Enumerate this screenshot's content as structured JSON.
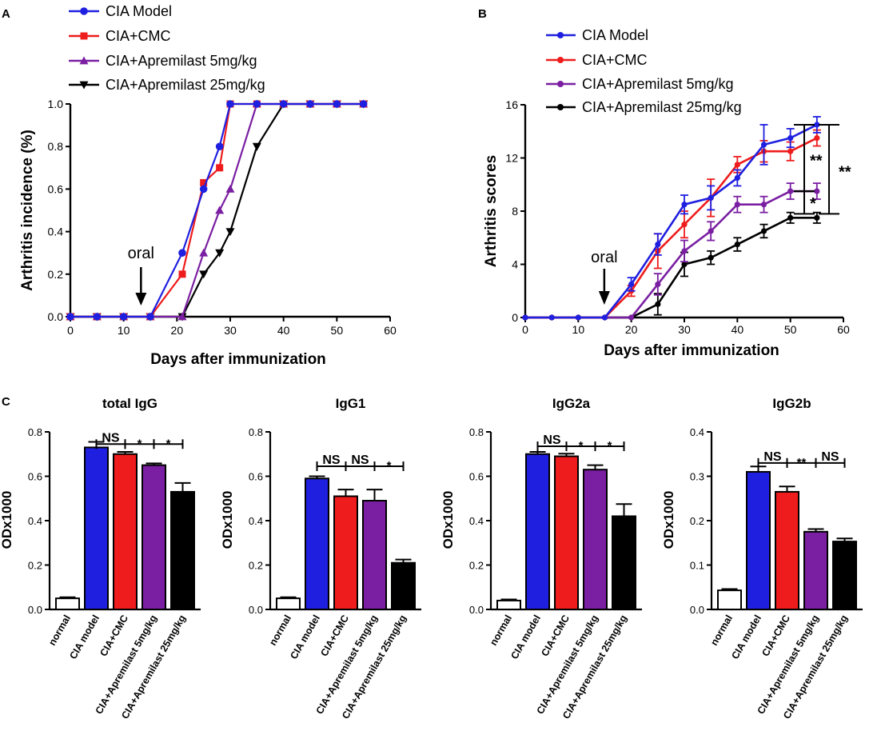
{
  "panel_letters": {
    "a": "A",
    "b": "B",
    "c": "C"
  },
  "chart_data": [
    {
      "id": "A",
      "type": "line",
      "title": "",
      "xlabel": "Days after immunization",
      "ylabel": "Arthritis incidence (%)",
      "xlim": [
        0,
        60
      ],
      "ylim": [
        0,
        1.0
      ],
      "xticks": [
        0,
        10,
        20,
        30,
        40,
        50,
        60
      ],
      "yticks": [
        0.0,
        0.2,
        0.4,
        0.6,
        0.8,
        1.0
      ],
      "xtick_labels": [
        "0",
        "10",
        "20",
        "30",
        "40",
        "50",
        "60"
      ],
      "ytick_labels": [
        "0.0",
        "0.2",
        "0.4",
        "0.6",
        "0.8",
        "1.0"
      ],
      "annotation": {
        "text": "oral",
        "x": 14
      },
      "legend": "top-left",
      "series": [
        {
          "name": "CIA Model",
          "color": "#1f1fe0",
          "marker": "circle",
          "x": [
            0,
            5,
            10,
            15,
            21,
            25,
            28,
            30,
            35,
            40,
            45,
            50,
            55
          ],
          "y": [
            0,
            0,
            0,
            0,
            0.3,
            0.6,
            0.8,
            1.0,
            1.0,
            1.0,
            1.0,
            1.0,
            1.0
          ]
        },
        {
          "name": "CIA+CMC",
          "color": "#ee1c1c",
          "marker": "square",
          "x": [
            0,
            5,
            10,
            15,
            21,
            25,
            28,
            30,
            35,
            40,
            45,
            50,
            55
          ],
          "y": [
            0,
            0,
            0,
            0,
            0.2,
            0.63,
            0.7,
            1.0,
            1.0,
            1.0,
            1.0,
            1.0,
            1.0
          ]
        },
        {
          "name": "CIA+Apremilast 5mg/kg",
          "color": "#7a1fa2",
          "marker": "triangle",
          "x": [
            0,
            5,
            10,
            15,
            21,
            25,
            28,
            30,
            35,
            40,
            45,
            50,
            55
          ],
          "y": [
            0,
            0,
            0,
            0,
            0,
            0.3,
            0.5,
            0.6,
            1.0,
            1.0,
            1.0,
            1.0,
            1.0
          ]
        },
        {
          "name": "CIA+Apremilast 25mg/kg",
          "color": "#000000",
          "marker": "triangle-down",
          "x": [
            0,
            5,
            10,
            15,
            21,
            25,
            28,
            30,
            35,
            40,
            45,
            50,
            55
          ],
          "y": [
            0,
            0,
            0,
            0,
            0,
            0.2,
            0.3,
            0.4,
            0.8,
            1.0,
            1.0,
            1.0,
            1.0
          ]
        }
      ]
    },
    {
      "id": "B",
      "type": "line",
      "title": "",
      "xlabel": "Days after immunization",
      "ylabel": "Arthritis scores",
      "xlim": [
        0,
        60
      ],
      "ylim": [
        0,
        16
      ],
      "xticks": [
        0,
        10,
        20,
        30,
        40,
        50,
        60
      ],
      "yticks": [
        0,
        4,
        8,
        12,
        16
      ],
      "xtick_labels": [
        "0",
        "10",
        "20",
        "30",
        "40",
        "50",
        "60"
      ],
      "ytick_labels": [
        "0",
        "4",
        "8",
        "12",
        "16"
      ],
      "annotation": {
        "text": "oral",
        "x": 14
      },
      "legend": "top-left",
      "significance": [
        {
          "label": "**",
          "y1": 14.5,
          "y2": 9.5
        },
        {
          "label": "*",
          "y1": 9.5,
          "y2": 7.8
        },
        {
          "label": "**",
          "y1": 14.5,
          "y2": 7.8
        }
      ],
      "series": [
        {
          "name": "CIA Model",
          "color": "#1f1fe0",
          "x": [
            0,
            5,
            10,
            15,
            20,
            25,
            30,
            35,
            40,
            45,
            50,
            55
          ],
          "y": [
            0,
            0,
            0,
            0,
            2.5,
            5.5,
            8.5,
            9.0,
            10.5,
            13.0,
            13.5,
            14.5
          ],
          "err": [
            0,
            0,
            0,
            0,
            0.5,
            0.8,
            0.7,
            0.9,
            0.6,
            1.5,
            0.7,
            0.6
          ]
        },
        {
          "name": "CIA+CMC",
          "color": "#ee1c1c",
          "x": [
            0,
            5,
            10,
            15,
            20,
            25,
            30,
            35,
            40,
            45,
            50,
            55
          ],
          "y": [
            0,
            0,
            0,
            0,
            2.0,
            5.0,
            7.0,
            9.0,
            11.5,
            12.5,
            12.5,
            13.5
          ],
          "err": [
            0,
            0,
            0,
            0,
            0.4,
            1.3,
            1.0,
            1.4,
            0.6,
            0.8,
            0.7,
            0.6
          ]
        },
        {
          "name": "CIA+Apremilast 5mg/kg",
          "color": "#7a1fa2",
          "x": [
            0,
            5,
            10,
            15,
            20,
            25,
            30,
            35,
            40,
            45,
            50,
            55
          ],
          "y": [
            0,
            0,
            0,
            0,
            0,
            2.5,
            5.0,
            6.5,
            8.5,
            8.5,
            9.5,
            9.5
          ],
          "err": [
            0,
            0,
            0,
            0,
            0,
            0.8,
            0.8,
            0.7,
            0.6,
            0.6,
            0.6,
            0.6
          ]
        },
        {
          "name": "CIA+Apremilast 25mg/kg",
          "color": "#000000",
          "x": [
            0,
            5,
            10,
            15,
            20,
            25,
            30,
            35,
            40,
            45,
            50,
            55
          ],
          "y": [
            0,
            0,
            0,
            0,
            0,
            1.0,
            4.0,
            4.5,
            5.5,
            6.5,
            7.5,
            7.5
          ],
          "err": [
            0,
            0,
            0,
            0,
            0,
            0.8,
            0.9,
            0.5,
            0.5,
            0.5,
            0.4,
            0.4
          ]
        }
      ]
    },
    {
      "id": "C1",
      "type": "bar",
      "title": "total IgG",
      "xlabel": "",
      "ylabel": "ODx1000",
      "ylim": [
        0,
        0.8
      ],
      "yticks": [
        0.0,
        0.2,
        0.4,
        0.6,
        0.8
      ],
      "ytick_labels": [
        "0.0",
        "0.2",
        "0.4",
        "0.6",
        "0.8"
      ],
      "categories": [
        "normal",
        "CIA model",
        "CIA+CMC",
        "CIA+Apremilast 5mg/kg",
        "CIA+Apremilast 25mg/kg"
      ],
      "colors": [
        "#ffffff",
        "#1f1fe0",
        "#ee1c1c",
        "#7a1fa2",
        "#000000"
      ],
      "values": [
        0.05,
        0.73,
        0.7,
        0.65,
        0.53
      ],
      "errors": [
        0.005,
        0.025,
        0.01,
        0.008,
        0.04
      ],
      "significance": [
        {
          "label": "NS",
          "from": 1,
          "to": 2,
          "y": 0.745
        },
        {
          "label": "*",
          "from": 2,
          "to": 3,
          "y": 0.745
        },
        {
          "label": "*",
          "from": 3,
          "to": 4,
          "y": 0.745
        }
      ]
    },
    {
      "id": "C2",
      "type": "bar",
      "title": "IgG1",
      "xlabel": "",
      "ylabel": "ODx1000",
      "ylim": [
        0,
        0.8
      ],
      "yticks": [
        0.0,
        0.2,
        0.4,
        0.6,
        0.8
      ],
      "ytick_labels": [
        "0.0",
        "0.2",
        "0.4",
        "0.6",
        "0.8"
      ],
      "categories": [
        "normal",
        "CIA model",
        "CIA+CMC",
        "CIA+Apremilast 5mg/kg",
        "CIA+Apremilast 25mg/kg"
      ],
      "colors": [
        "#ffffff",
        "#1f1fe0",
        "#ee1c1c",
        "#7a1fa2",
        "#000000"
      ],
      "values": [
        0.05,
        0.59,
        0.51,
        0.49,
        0.21
      ],
      "errors": [
        0.005,
        0.01,
        0.03,
        0.05,
        0.015
      ],
      "significance": [
        {
          "label": "NS",
          "from": 1,
          "to": 2,
          "y": 0.645
        },
        {
          "label": "NS",
          "from": 2,
          "to": 3,
          "y": 0.645
        },
        {
          "label": "*",
          "from": 3,
          "to": 4,
          "y": 0.645
        }
      ]
    },
    {
      "id": "C3",
      "type": "bar",
      "title": "IgG2a",
      "xlabel": "",
      "ylabel": "ODx1000",
      "ylim": [
        0,
        0.8
      ],
      "yticks": [
        0.0,
        0.2,
        0.4,
        0.6,
        0.8
      ],
      "ytick_labels": [
        "0.0",
        "0.2",
        "0.4",
        "0.6",
        "0.8"
      ],
      "categories": [
        "normal",
        "CIA model",
        "CIA+CMC",
        "CIA+Apremilast 5mg/kg",
        "CIA+Apremilast 25mg/kg"
      ],
      "colors": [
        "#ffffff",
        "#1f1fe0",
        "#ee1c1c",
        "#7a1fa2",
        "#000000"
      ],
      "values": [
        0.04,
        0.7,
        0.69,
        0.63,
        0.42
      ],
      "errors": [
        0.005,
        0.01,
        0.012,
        0.02,
        0.055
      ],
      "significance": [
        {
          "label": "NS",
          "from": 1,
          "to": 2,
          "y": 0.735
        },
        {
          "label": "*",
          "from": 2,
          "to": 3,
          "y": 0.735
        },
        {
          "label": "*",
          "from": 3,
          "to": 4,
          "y": 0.735
        }
      ]
    },
    {
      "id": "C4",
      "type": "bar",
      "title": "IgG2b",
      "xlabel": "",
      "ylabel": "ODx1000",
      "ylim": [
        0,
        0.4
      ],
      "yticks": [
        0.0,
        0.1,
        0.2,
        0.3,
        0.4
      ],
      "ytick_labels": [
        "0.0",
        "0.1",
        "0.2",
        "0.3",
        "0.4"
      ],
      "categories": [
        "normal",
        "CIA model",
        "CIA+CMC",
        "CIA+Apremilast 5mg/kg",
        "CIA+Apremilast 25mg/kg"
      ],
      "colors": [
        "#ffffff",
        "#1f1fe0",
        "#ee1c1c",
        "#7a1fa2",
        "#000000"
      ],
      "values": [
        0.043,
        0.31,
        0.265,
        0.175,
        0.153
      ],
      "errors": [
        0.003,
        0.012,
        0.012,
        0.006,
        0.007
      ],
      "significance": [
        {
          "label": "NS",
          "from": 1,
          "to": 2,
          "y": 0.33
        },
        {
          "label": "**",
          "from": 2,
          "to": 3,
          "y": 0.33
        },
        {
          "label": "NS",
          "from": 3,
          "to": 4,
          "y": 0.33
        }
      ]
    }
  ]
}
